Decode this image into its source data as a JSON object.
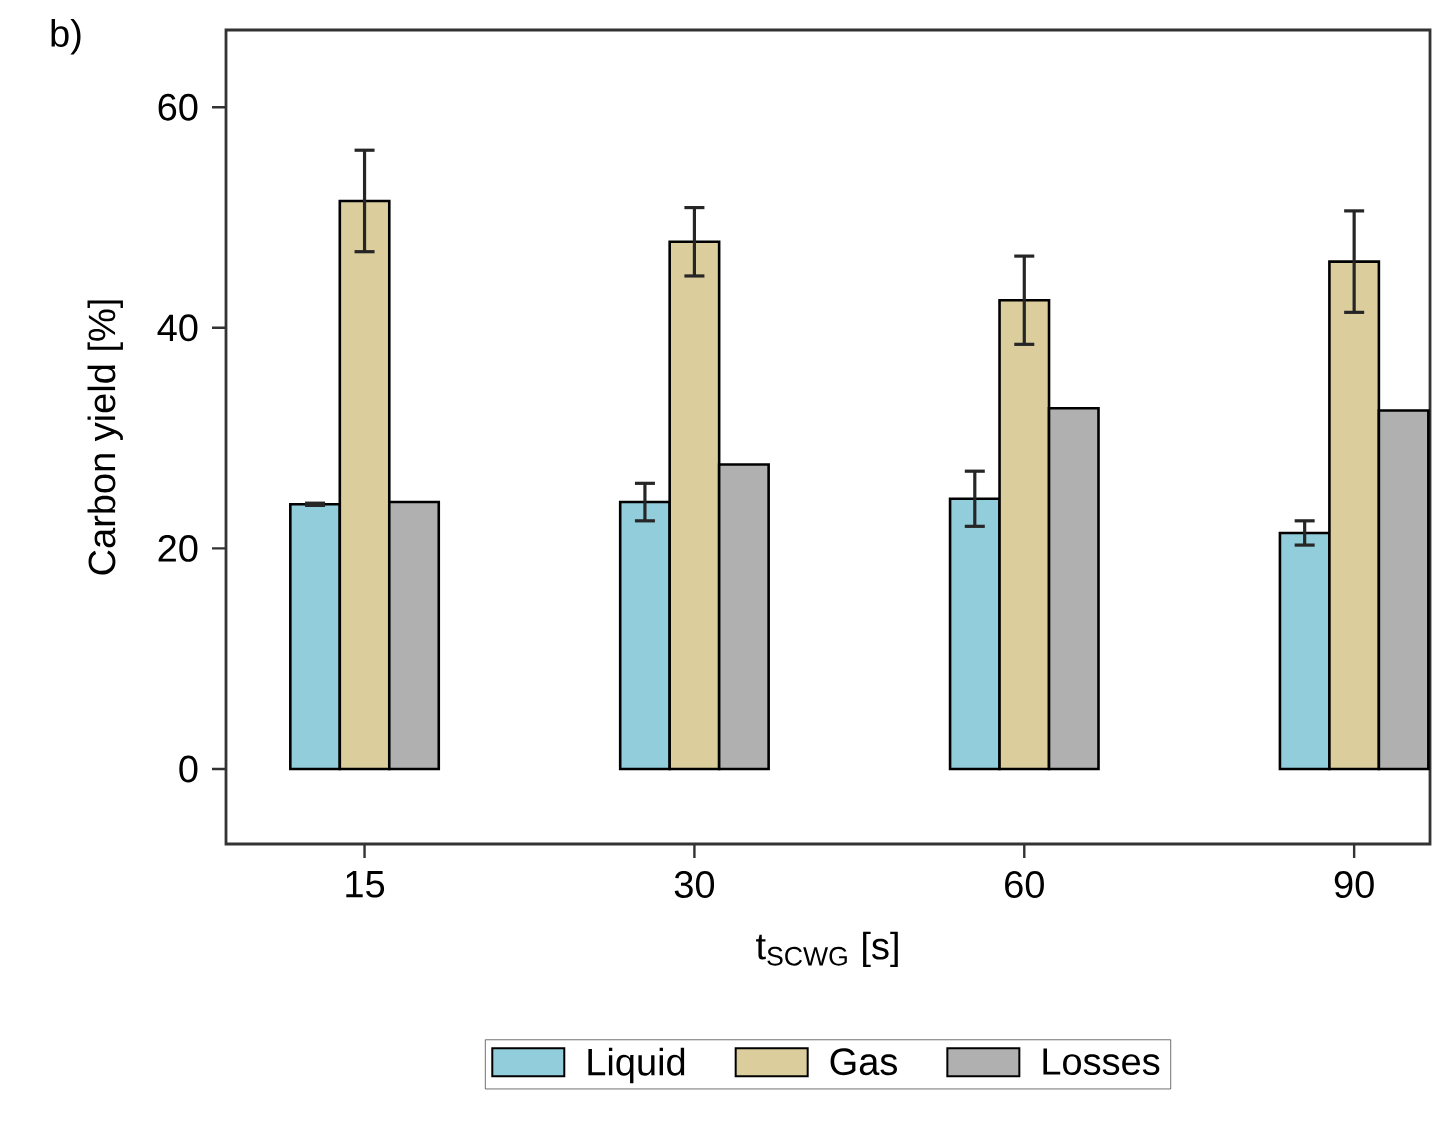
{
  "chart_data": {
    "type": "bar",
    "title": "b)",
    "xlabel": "t$_{SCWG}$ [s]",
    "ylabel": "Carbon yield [%]",
    "categories": [
      "15",
      "30",
      "60",
      "90"
    ],
    "series": [
      {
        "name": "Liquid",
        "color": "#92cddc",
        "values": [
          24.0,
          24.2,
          24.5,
          21.4
        ],
        "errors": [
          0.1,
          1.7,
          2.5,
          1.1
        ]
      },
      {
        "name": "Gas",
        "color": "#dbcd9c",
        "values": [
          51.5,
          47.8,
          42.5,
          46.0
        ],
        "errors": [
          4.6,
          3.1,
          4.0,
          4.6
        ]
      },
      {
        "name": "Losses",
        "color": "#b0b0b0",
        "values": [
          24.2,
          27.6,
          32.7,
          32.5
        ]
      }
    ],
    "ylim": [
      -6.8,
      67
    ],
    "yticks": [
      0,
      20,
      40,
      60
    ],
    "grid": false,
    "legend": "bottom"
  }
}
